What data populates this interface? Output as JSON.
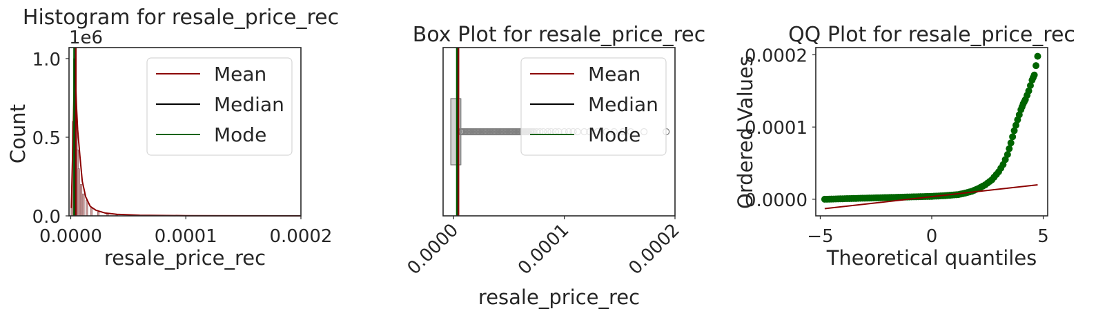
{
  "colors": {
    "mean": "#8b0000",
    "median": "#000000",
    "mode": "#006400",
    "hist_fill": "#c99a9a",
    "box_gray": "#808080",
    "qq_points": "#006400",
    "qq_line": "#8b0000"
  },
  "chart_data": [
    {
      "type": "bar",
      "title": "Histogram for resale_price_rec",
      "xlabel": "resale_price_rec",
      "ylabel": "Count",
      "offset_text": "1e6",
      "xlim": [
        -1.5e-06,
        0.0002
      ],
      "ylim": [
        0,
        1.07
      ],
      "xticks": [
        {
          "value": 0.0,
          "label": "0.0000"
        },
        {
          "value": 0.0001,
          "label": "0.0001"
        },
        {
          "value": 0.0002,
          "label": "0.0002"
        }
      ],
      "yticks": [
        {
          "value": 0.0,
          "label": "0.0"
        },
        {
          "value": 0.5,
          "label": "0.5"
        },
        {
          "value": 1.0,
          "label": "1.0"
        }
      ],
      "bins_x": [
        1e-06,
        2e-06,
        3e-06,
        4e-06,
        5e-06,
        6e-06,
        7e-06,
        9e-06,
        1.1e-05,
        1.4e-05,
        1.8e-05,
        2.4e-05,
        3.2e-05,
        4e-05,
        6e-05
      ],
      "bins_y": [
        0.05,
        0.6,
        1.0,
        0.85,
        0.62,
        0.42,
        0.3,
        0.2,
        0.14,
        0.1,
        0.05,
        0.025,
        0.012,
        0.006,
        0.003
      ],
      "kde": {
        "x": [
          5e-07,
          2e-06,
          3.5e-06,
          5e-06,
          6e-06,
          8e-06,
          1e-05,
          1.3e-05,
          1.7e-05,
          2.2e-05,
          3e-05,
          4e-05,
          6e-05,
          0.0001,
          0.00015,
          0.0002
        ],
        "y": [
          0.05,
          0.5,
          1.0,
          0.7,
          0.55,
          0.38,
          0.22,
          0.12,
          0.06,
          0.035,
          0.018,
          0.01,
          0.004,
          0.0015,
          0.0005,
          0.0002
        ]
      },
      "mean": 4.5e-06,
      "median": 3.2e-06,
      "mode": 2.8e-06,
      "legend": {
        "entries": [
          "Mean",
          "Median",
          "Mode"
        ],
        "placement": "top-right"
      },
      "grid": false
    },
    {
      "type": "box",
      "title": "Box Plot for resale_price_rec",
      "xlabel": "resale_price_rec",
      "xlim": [
        -9.5e-06,
        0.0002
      ],
      "xticks": [
        {
          "value": 0.0,
          "label": "0.0000"
        },
        {
          "value": 0.0001,
          "label": "0.0001"
        },
        {
          "value": 0.0002,
          "label": "0.0002"
        }
      ],
      "tick_rotation": -45,
      "q1": -2.5e-06,
      "median": 3.2e-06,
      "q3": 6.5e-06,
      "whisker_low": -2.5e-06,
      "whisker_high": 6.5e-06,
      "outliers_dense_range": [
        6.5e-06,
        7.3e-05
      ],
      "outliers": [
        7.5e-05,
        7.8e-05,
        8.1e-05,
        8.5e-05,
        8.8e-05,
        9.2e-05,
        9.5e-05,
        0.0001,
        0.000104,
        0.000108,
        0.000112,
        0.000118,
        0.000123,
        0.00013,
        0.000138,
        0.000145,
        0.000153,
        0.00016,
        0.000172,
        0.000192
      ],
      "mean": 4.5e-06,
      "mode": 2.8e-06,
      "legend": {
        "entries": [
          "Mean",
          "Median",
          "Mode"
        ],
        "placement": "top-right"
      },
      "grid": false
    },
    {
      "type": "scatter",
      "title": "QQ Plot for resale_price_rec",
      "xlabel": "Theoretical quantiles",
      "ylabel": "Ordered Values",
      "xlim": [
        -5.2,
        5.2
      ],
      "ylim": [
        -2.3e-05,
        0.00021
      ],
      "xticks": [
        {
          "value": -5,
          "label": "−5"
        },
        {
          "value": 0,
          "label": "0"
        },
        {
          "value": 5,
          "label": "5"
        }
      ],
      "yticks": [
        {
          "value": 0.0,
          "label": "0.0000"
        },
        {
          "value": 0.0001,
          "label": "0.0001"
        },
        {
          "value": 0.0002,
          "label": "0.0002"
        }
      ],
      "points": {
        "x": [
          -4.8,
          -4.2,
          -3.6,
          -3.0,
          -2.4,
          -1.8,
          -1.2,
          -0.6,
          0.0,
          0.6,
          1.2,
          1.5,
          1.8,
          2.1,
          2.4,
          2.7,
          3.0,
          3.2,
          3.4,
          3.55,
          3.7,
          3.85,
          4.0,
          4.1,
          4.2,
          4.35,
          4.5,
          4.6,
          4.75
        ],
        "y": [
          0.0,
          5e-07,
          1e-06,
          1.5e-06,
          2e-06,
          2.5e-06,
          3e-06,
          3.5e-06,
          4e-06,
          5e-06,
          6.5e-06,
          8.5e-06,
          1.1e-05,
          1.5e-05,
          2e-05,
          2.7e-05,
          3.8e-05,
          4.8e-05,
          6.2e-05,
          7.8e-05,
          9.5e-05,
          0.00011,
          0.000124,
          0.000132,
          0.000138,
          0.00015,
          0.000165,
          0.000172,
          0.000198
        ]
      },
      "fit_line": {
        "x": [
          -4.8,
          4.75
        ],
        "y": [
          -1.3e-05,
          2e-05
        ]
      },
      "grid": false
    }
  ]
}
